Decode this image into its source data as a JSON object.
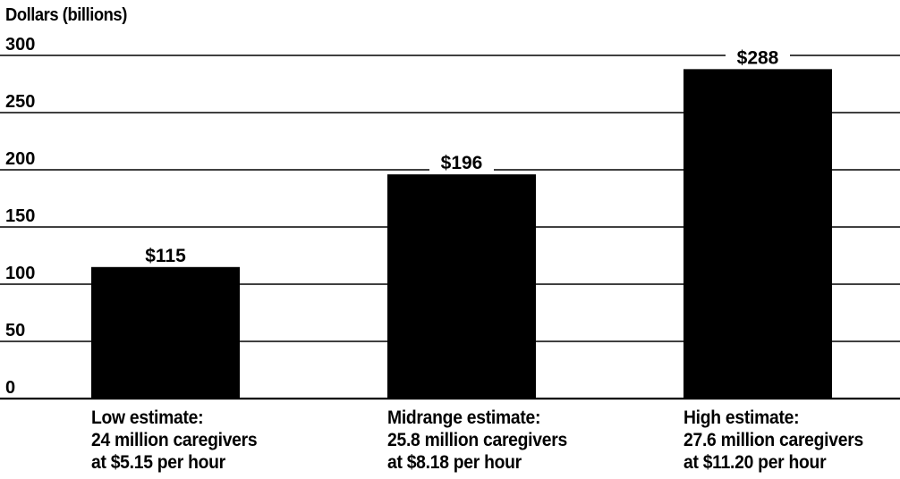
{
  "chart_data": {
    "type": "bar",
    "ylabel": "Dollars (billions)",
    "ylim": [
      0,
      300
    ],
    "yticks": [
      0,
      50,
      100,
      150,
      200,
      250,
      300
    ],
    "grid": true,
    "categories": [
      [
        "Low estimate:",
        "24 million caregivers",
        "at $5.15 per hour"
      ],
      [
        "Midrange estimate:",
        "25.8 million caregivers",
        "at $8.18 per hour"
      ],
      [
        "High estimate:",
        "27.6 million caregivers",
        "at $11.20 per hour"
      ]
    ],
    "values": [
      115,
      196,
      288
    ],
    "data_labels": [
      "$115",
      "$196",
      "$288"
    ],
    "bar_color": "#000000",
    "grid_color": "#000000"
  }
}
